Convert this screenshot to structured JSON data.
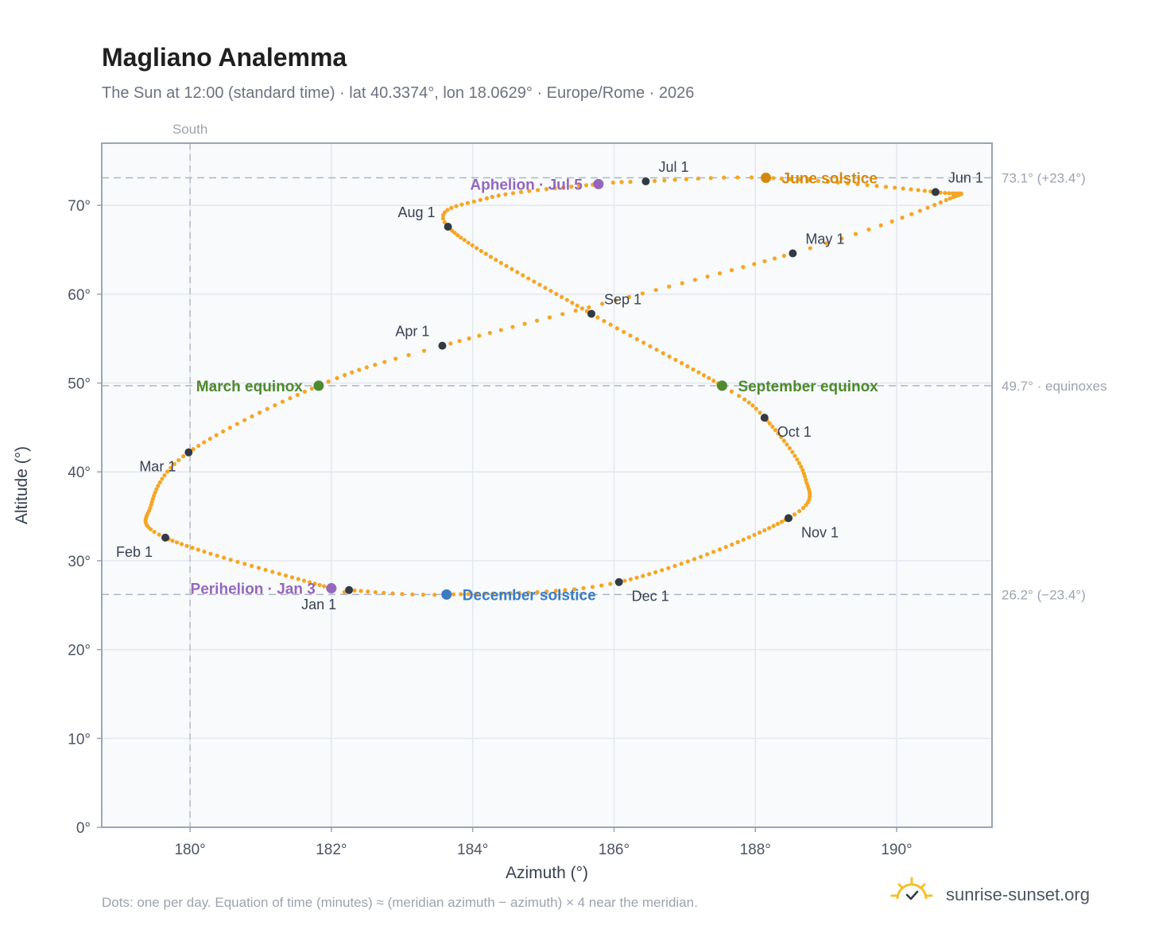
{
  "title": "Magliano Analemma",
  "subtitle": "The Sun at 12:00 (standard time) · lat 40.3374°, lon 18.0629° · Europe/Rome · 2026",
  "footnote": "Dots: one per day. Equation of time (minutes) ≈ (meridian azimuth − azimuth) × 4 near the meridian.",
  "brand": "sunrise-sunset.org",
  "colors": {
    "curve": "#f5a623",
    "month_marker": "#333a44",
    "equinox": "#4e8a2e",
    "june_solstice": "#d4890d",
    "december_solstice": "#3a7cc4",
    "apsis": "#9467bd",
    "brand_sun": "#f4c02a"
  },
  "chart_data": {
    "type": "scatter",
    "xlabel": "Azimuth (°)",
    "ylabel": "Altitude (°)",
    "xlim": [
      178.75,
      191.35
    ],
    "ylim": [
      0,
      77
    ],
    "xticks": [
      180,
      182,
      184,
      186,
      188,
      190
    ],
    "xtick_labels": [
      "180°",
      "182°",
      "184°",
      "186°",
      "188°",
      "190°"
    ],
    "yticks": [
      0,
      10,
      20,
      30,
      40,
      50,
      60,
      70
    ],
    "ytick_labels": [
      "0°",
      "10°",
      "20°",
      "30°",
      "40°",
      "50°",
      "60°",
      "70°"
    ],
    "grid": true,
    "meridian": {
      "azimuth": 180,
      "label": "South"
    },
    "reference_lines": [
      {
        "altitude": 73.1,
        "label": "73.1° (+23.4°)"
      },
      {
        "altitude": 49.7,
        "label": "49.7° · equinoxes"
      },
      {
        "altitude": 26.2,
        "label": "26.2° (−23.4°)"
      }
    ],
    "month_markers": [
      {
        "label": "Jan 1",
        "az": 182.25,
        "alt": 26.7,
        "label_pos": "below-left"
      },
      {
        "label": "Feb 1",
        "az": 179.65,
        "alt": 32.6,
        "label_pos": "below-left"
      },
      {
        "label": "Mar 1",
        "az": 179.98,
        "alt": 42.2,
        "label_pos": "below-left"
      },
      {
        "label": "Apr 1",
        "az": 183.57,
        "alt": 54.2,
        "label_pos": "above-left"
      },
      {
        "label": "May 1",
        "az": 188.53,
        "alt": 64.6,
        "label_pos": "above-right"
      },
      {
        "label": "Jun 1",
        "az": 190.55,
        "alt": 71.5,
        "label_pos": "above-right"
      },
      {
        "label": "Jul 1",
        "az": 186.45,
        "alt": 72.7,
        "label_pos": "above-right"
      },
      {
        "label": "Aug 1",
        "az": 183.65,
        "alt": 67.6,
        "label_pos": "above-left"
      },
      {
        "label": "Sep 1",
        "az": 185.68,
        "alt": 57.8,
        "label_pos": "above-right"
      },
      {
        "label": "Oct 1",
        "az": 188.13,
        "alt": 46.1,
        "label_pos": "below-right"
      },
      {
        "label": "Nov 1",
        "az": 188.47,
        "alt": 34.8,
        "label_pos": "below-right"
      },
      {
        "label": "Dec 1",
        "az": 186.07,
        "alt": 27.6,
        "label_pos": "below-right"
      }
    ],
    "events": [
      {
        "label": "March equinox",
        "az": 181.82,
        "alt": 49.7,
        "color_key": "equinox",
        "label_pos": "left"
      },
      {
        "label": "September equinox",
        "az": 187.53,
        "alt": 49.7,
        "color_key": "equinox",
        "label_pos": "right"
      },
      {
        "label": "June solstice",
        "az": 188.15,
        "alt": 73.1,
        "color_key": "june_solstice",
        "label_pos": "right"
      },
      {
        "label": "December solstice",
        "az": 183.63,
        "alt": 26.2,
        "color_key": "december_solstice",
        "label_pos": "right"
      },
      {
        "label": "Aphelion · Jul 5",
        "az": 185.78,
        "alt": 72.4,
        "color_key": "apsis",
        "label_pos": "left"
      },
      {
        "label": "Perihelion · Jan 3",
        "az": 182.0,
        "alt": 26.9,
        "color_key": "apsis",
        "label_pos": "left"
      }
    ],
    "path_knots": [
      {
        "day": 0,
        "az": 182.25,
        "alt": 26.7
      },
      {
        "day": 2,
        "az": 182.0,
        "alt": 26.9
      },
      {
        "day": 31,
        "az": 179.65,
        "alt": 32.6
      },
      {
        "day": 44,
        "az": 179.45,
        "alt": 36.3
      },
      {
        "day": 59,
        "az": 179.98,
        "alt": 42.2
      },
      {
        "day": 78,
        "az": 181.82,
        "alt": 49.7
      },
      {
        "day": 90,
        "az": 183.57,
        "alt": 54.2
      },
      {
        "day": 120,
        "az": 188.53,
        "alt": 64.6
      },
      {
        "day": 134,
        "az": 190.7,
        "alt": 70.6
      },
      {
        "day": 151,
        "az": 190.55,
        "alt": 71.5
      },
      {
        "day": 171,
        "az": 188.15,
        "alt": 73.1
      },
      {
        "day": 181,
        "az": 186.45,
        "alt": 72.7
      },
      {
        "day": 185,
        "az": 185.78,
        "alt": 72.4
      },
      {
        "day": 200,
        "az": 184.2,
        "alt": 70.8
      },
      {
        "day": 212,
        "az": 183.65,
        "alt": 67.6
      },
      {
        "day": 243,
        "az": 185.68,
        "alt": 57.8
      },
      {
        "day": 265,
        "az": 187.53,
        "alt": 49.7
      },
      {
        "day": 273,
        "az": 188.13,
        "alt": 46.1
      },
      {
        "day": 290,
        "az": 188.7,
        "alt": 39.5
      },
      {
        "day": 304,
        "az": 188.47,
        "alt": 34.8
      },
      {
        "day": 334,
        "az": 186.07,
        "alt": 27.6
      },
      {
        "day": 354,
        "az": 183.63,
        "alt": 26.2
      },
      {
        "day": 365,
        "az": 182.25,
        "alt": 26.7
      }
    ]
  }
}
